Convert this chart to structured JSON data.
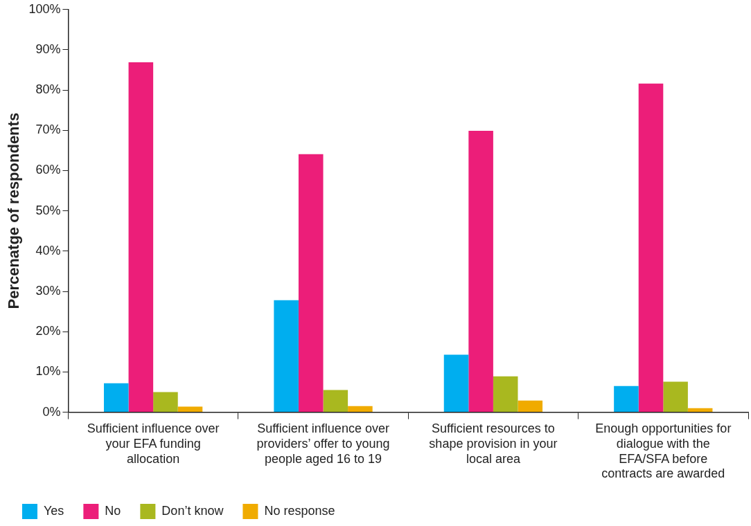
{
  "chart_data": {
    "type": "bar",
    "ylabel": "Percenatge of respondents",
    "categories": [
      "Sufficient influence over your EFA funding allocation",
      "Sufficient influence over providers’ offer to young people aged 16 to 19",
      "Sufficient resources to shape provision in your local area",
      "Enough opportunities for dialogue with the EFA/SFA before contracts are awarded"
    ],
    "series": [
      {
        "name": "Yes",
        "color": "#00aeef",
        "values": [
          7.2,
          27.8,
          14.3,
          6.5
        ]
      },
      {
        "name": "No",
        "color": "#ec1e79",
        "values": [
          86.9,
          64.1,
          69.9,
          81.6
        ]
      },
      {
        "name": "Don’t know",
        "color": "#a9b81f",
        "values": [
          5.0,
          5.5,
          8.9,
          7.6
        ]
      },
      {
        "name": "No response",
        "color": "#f0ab00",
        "values": [
          1.4,
          1.5,
          2.9,
          1.0
        ]
      }
    ],
    "ylim": [
      0,
      100
    ],
    "yticks": [
      {
        "value": 0,
        "label": "0%"
      },
      {
        "value": 10,
        "label": "10%"
      },
      {
        "value": 20,
        "label": "20%"
      },
      {
        "value": 30,
        "label": "30%"
      },
      {
        "value": 40,
        "label": "40%"
      },
      {
        "value": 50,
        "label": "50%"
      },
      {
        "value": 60,
        "label": "60%"
      },
      {
        "value": 70,
        "label": "70%"
      },
      {
        "value": 80,
        "label": "80%"
      },
      {
        "value": 90,
        "label": "90%"
      },
      {
        "value": 100,
        "label": "100%"
      }
    ],
    "grid": false,
    "legend": "bottom left"
  }
}
